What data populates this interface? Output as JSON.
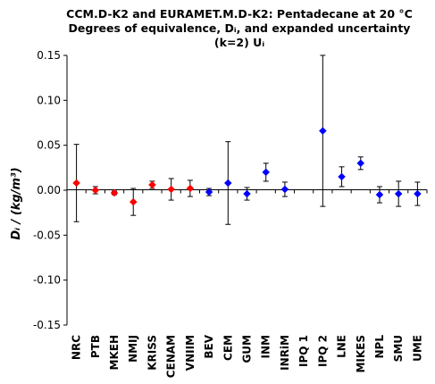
{
  "chart_data": {
    "type": "scatter",
    "title_lines": [
      "CCM.D-K2 and EURAMET.M.D-K2: Pentadecane at 20 °C",
      "Degrees of equivalence, Dᵢ, and expanded uncertainty",
      "(k=2) Uᵢ"
    ],
    "ylabel": "Dᵢ / (kg/m³)",
    "ylim": [
      -0.15,
      0.15
    ],
    "yticks": [
      -0.15,
      -0.1,
      -0.05,
      0.0,
      0.05,
      0.1,
      0.15
    ],
    "ytick_labels": [
      "-0.15",
      "-0.10",
      "-0.05",
      "0.00",
      "0.05",
      "0.10",
      "0.15"
    ],
    "grid": false,
    "colors": {
      "ccm": "#ff0000",
      "euramet": "#0000ff",
      "axis": "#000000"
    },
    "categories": [
      "NRC",
      "PTB",
      "MKEH",
      "NMIJ",
      "KRISS",
      "CENAM",
      "VNIIM",
      "BEV",
      "CEM",
      "GUM",
      "INM",
      "INRiM",
      "IPQ 1",
      "IPQ 2",
      "LNE",
      "MIKES",
      "NPL",
      "SMU",
      "UME"
    ],
    "points": [
      {
        "label": "NRC",
        "y": 0.008,
        "U": 0.043,
        "marker": "red"
      },
      {
        "label": "PTB",
        "y": 0.0,
        "U": 0.004,
        "marker": "red"
      },
      {
        "label": "MKEH",
        "y": -0.003,
        "U": 0.002,
        "marker": "red"
      },
      {
        "label": "NMIJ",
        "y": -0.013,
        "U": 0.015,
        "marker": "red"
      },
      {
        "label": "KRISS",
        "y": 0.006,
        "U": 0.004,
        "marker": "red"
      },
      {
        "label": "CENAM",
        "y": 0.001,
        "U": 0.012,
        "marker": "red"
      },
      {
        "label": "VNIIM",
        "y": 0.002,
        "U": 0.009,
        "marker": "red"
      },
      {
        "label": "BEV",
        "y": -0.002,
        "U": 0.004,
        "marker": "blue"
      },
      {
        "label": "CEM",
        "y": 0.008,
        "U": 0.046,
        "marker": "blue"
      },
      {
        "label": "GUM",
        "y": -0.004,
        "U": 0.007,
        "marker": "blue"
      },
      {
        "label": "INM",
        "y": 0.02,
        "U": 0.01,
        "marker": "blue"
      },
      {
        "label": "INRiM",
        "y": 0.001,
        "U": 0.008,
        "marker": "blue"
      },
      {
        "label": "IPQ 1",
        "y": null,
        "U": null,
        "marker": "none"
      },
      {
        "label": "IPQ 2",
        "y": 0.066,
        "U": 0.084,
        "marker": "blue"
      },
      {
        "label": "LNE",
        "y": 0.015,
        "U": 0.011,
        "marker": "blue"
      },
      {
        "label": "MIKES",
        "y": 0.03,
        "U": 0.007,
        "marker": "blue"
      },
      {
        "label": "NPL",
        "y": -0.005,
        "U": 0.009,
        "marker": "blue"
      },
      {
        "label": "SMU",
        "y": -0.004,
        "U": 0.014,
        "marker": "blue"
      },
      {
        "label": "UME",
        "y": -0.004,
        "U": 0.013,
        "marker": "blue"
      }
    ]
  }
}
